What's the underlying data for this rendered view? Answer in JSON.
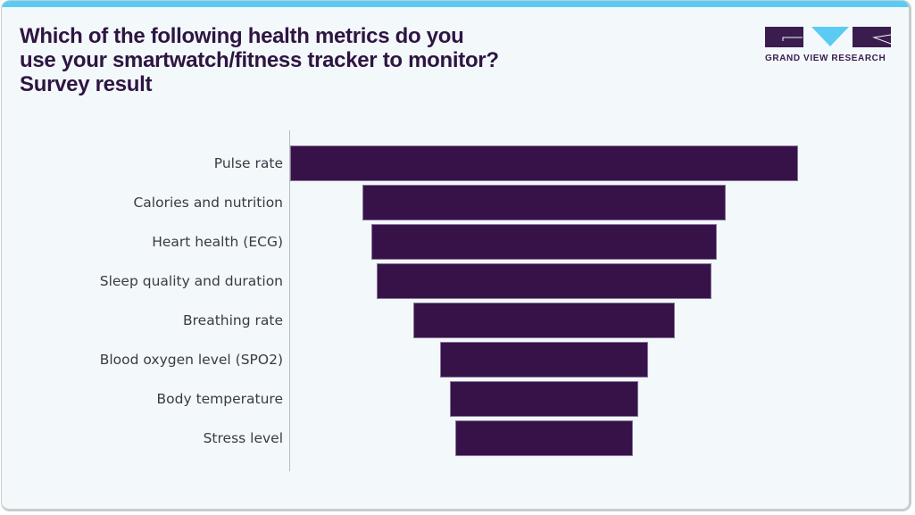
{
  "header": {
    "title_lines": [
      "Which of the following health metrics do you",
      "use your smartwatch/fitness tracker to monitor?",
      "Survey result"
    ]
  },
  "logo": {
    "text": "GRAND VIEW RESEARCH",
    "icon": "gvr-logo-icon"
  },
  "colors": {
    "bar": "#371249",
    "accent": "#5ccbf4",
    "title": "#2e1542",
    "background": "#f3f8fb"
  },
  "chart_data": {
    "type": "bar",
    "subtype": "funnel (centered horizontal bars)",
    "title": "Which of the following health metrics do you use your smartwatch/fitness tracker to monitor? Survey result",
    "xlabel": "",
    "ylabel": "",
    "categories": [
      "Pulse rate",
      "Calories and nutrition",
      "Heart health (ECG)",
      "Sleep quality and duration",
      "Breathing rate",
      "Blood oxygen level (SPO2)",
      "Body temperature",
      "Stress level"
    ],
    "values": [
      100,
      71.5,
      68,
      66,
      51.5,
      41,
      37,
      35
    ],
    "value_note": "Relative bar widths (Pulse rate = 100); no numeric labels shown on chart",
    "grid": false,
    "legend": null,
    "xlim": [
      0,
      100
    ]
  }
}
